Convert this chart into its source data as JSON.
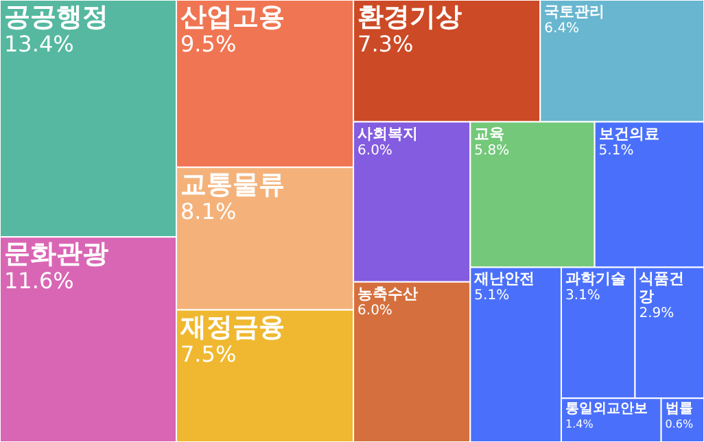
{
  "chart_data": {
    "type": "other",
    "categories": [
      "공공행정",
      "문화관광",
      "산업고용",
      "교통물류",
      "재정금융",
      "환경기상",
      "국토관리",
      "사회복지",
      "농축수산",
      "교육",
      "보건의료",
      "재난안전",
      "과학기술",
      "식품건강",
      "통일외교안보",
      "법률"
    ],
    "values": [
      13.4,
      11.6,
      9.5,
      8.1,
      7.5,
      7.3,
      6.4,
      6.0,
      6.0,
      5.8,
      5.1,
      5.1,
      3.1,
      2.9,
      1.4,
      0.6
    ],
    "value_labels": [
      "13.4%",
      "11.6%",
      "9.5%",
      "8.1%",
      "7.5%",
      "7.3%",
      "6.4%",
      "6.0%",
      "6.0%",
      "5.8%",
      "5.1%",
      "5.1%",
      "3.1%",
      "2.9%",
      "1.4%",
      "0.6%"
    ],
    "colors": [
      "#56b8a0",
      "#d966b4",
      "#f07552",
      "#f4b27a",
      "#f0b830",
      "#cc4a26",
      "#68b6d0",
      "#835ce0",
      "#d5703e",
      "#74c87a",
      "#4a70fb",
      "#4a70fb",
      "#4a70fb",
      "#4a70fb",
      "#4a70fb",
      "#4a70fb"
    ]
  }
}
